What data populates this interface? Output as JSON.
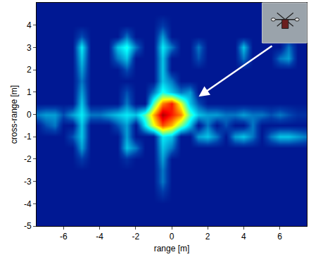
{
  "chart_data": {
    "type": "heatmap",
    "xlabel": "range [m]",
    "ylabel": "cross-range [m]",
    "xlim": [
      -7.5,
      7.5
    ],
    "ylim": [
      -5,
      5
    ],
    "xticks": [
      -6,
      -4,
      -2,
      0,
      2,
      4,
      6
    ],
    "yticks": [
      -5,
      -4,
      -3,
      -2,
      -1,
      0,
      1,
      2,
      3,
      4
    ],
    "zlim": [
      0,
      1
    ],
    "color": "Jet",
    "x": [
      -7.5,
      -7,
      -6.5,
      -6,
      -5.5,
      -5,
      -4.5,
      -4,
      -3.5,
      -3,
      -2.5,
      -2,
      -1.5,
      -1,
      -0.5,
      0,
      0.5,
      1,
      1.5,
      2,
      2.5,
      3,
      3.5,
      4,
      4.5,
      5,
      5.5,
      6,
      6.5,
      7,
      7.5
    ],
    "y": [
      -5,
      -4.5,
      -4,
      -3.5,
      -3,
      -2.5,
      -2,
      -1.5,
      -1,
      -0.5,
      0,
      0.5,
      1,
      1.5,
      2,
      2.5,
      3,
      3.5,
      4,
      4.5,
      5
    ],
    "z": [
      [
        0.05,
        0.05,
        0.05,
        0.05,
        0.05,
        0.05,
        0.05,
        0.05,
        0.05,
        0.05,
        0.05,
        0.05,
        0.05,
        0.05,
        0.05,
        0.05,
        0.05,
        0.05,
        0.05,
        0.05,
        0.05,
        0.05,
        0.05,
        0.05,
        0.05,
        0.05,
        0.05,
        0.05,
        0.05,
        0.05,
        0.05
      ],
      [
        0.05,
        0.05,
        0.05,
        0.05,
        0.05,
        0.05,
        0.05,
        0.05,
        0.05,
        0.05,
        0.05,
        0.05,
        0.05,
        0.05,
        0.05,
        0.05,
        0.05,
        0.05,
        0.05,
        0.05,
        0.05,
        0.05,
        0.05,
        0.05,
        0.05,
        0.05,
        0.05,
        0.05,
        0.05,
        0.05,
        0.05
      ],
      [
        0.05,
        0.05,
        0.05,
        0.05,
        0.05,
        0.05,
        0.05,
        0.05,
        0.05,
        0.05,
        0.05,
        0.05,
        0.05,
        0.05,
        0.05,
        0.05,
        0.05,
        0.05,
        0.05,
        0.05,
        0.05,
        0.05,
        0.05,
        0.05,
        0.05,
        0.05,
        0.05,
        0.05,
        0.05,
        0.05,
        0.05
      ],
      [
        0.05,
        0.05,
        0.05,
        0.05,
        0.05,
        0.05,
        0.05,
        0.05,
        0.05,
        0.05,
        0.05,
        0.05,
        0.05,
        0.05,
        0.12,
        0.05,
        0.05,
        0.05,
        0.05,
        0.05,
        0.05,
        0.05,
        0.05,
        0.05,
        0.05,
        0.05,
        0.05,
        0.05,
        0.05,
        0.05,
        0.05
      ],
      [
        0.05,
        0.05,
        0.05,
        0.05,
        0.05,
        0.05,
        0.05,
        0.05,
        0.05,
        0.05,
        0.05,
        0.05,
        0.05,
        0.05,
        0.2,
        0.05,
        0.05,
        0.05,
        0.05,
        0.05,
        0.05,
        0.05,
        0.05,
        0.05,
        0.05,
        0.05,
        0.05,
        0.05,
        0.05,
        0.05,
        0.05
      ],
      [
        0.05,
        0.05,
        0.05,
        0.05,
        0.05,
        0.05,
        0.05,
        0.05,
        0.05,
        0.05,
        0.05,
        0.05,
        0.05,
        0.05,
        0.2,
        0.05,
        0.05,
        0.05,
        0.05,
        0.05,
        0.05,
        0.05,
        0.05,
        0.05,
        0.05,
        0.05,
        0.05,
        0.05,
        0.05,
        0.05,
        0.05
      ],
      [
        0.05,
        0.05,
        0.05,
        0.05,
        0.05,
        0.12,
        0.05,
        0.05,
        0.05,
        0.05,
        0.1,
        0.05,
        0.05,
        0.05,
        0.25,
        0.05,
        0.05,
        0.05,
        0.05,
        0.05,
        0.05,
        0.05,
        0.05,
        0.05,
        0.05,
        0.05,
        0.05,
        0.05,
        0.05,
        0.05,
        0.05
      ],
      [
        0.05,
        0.05,
        0.05,
        0.05,
        0.05,
        0.25,
        0.05,
        0.05,
        0.05,
        0.05,
        0.3,
        0.2,
        0.05,
        0.05,
        0.3,
        0.2,
        0.05,
        0.05,
        0.05,
        0.05,
        0.05,
        0.05,
        0.05,
        0.05,
        0.05,
        0.05,
        0.05,
        0.05,
        0.05,
        0.05,
        0.05
      ],
      [
        0.05,
        0.05,
        0.05,
        0.05,
        0.15,
        0.3,
        0.05,
        0.05,
        0.05,
        0.05,
        0.25,
        0.05,
        0.05,
        0.05,
        0.35,
        0.3,
        0.05,
        0.05,
        0.25,
        0.3,
        0.2,
        0.05,
        0.25,
        0.3,
        0.2,
        0.05,
        0.2,
        0.3,
        0.3,
        0.25,
        0.2
      ],
      [
        0.05,
        0.15,
        0.2,
        0.05,
        0.05,
        0.3,
        0.05,
        0.05,
        0.05,
        0.15,
        0.25,
        0.05,
        0.35,
        0.6,
        0.8,
        0.7,
        0.5,
        0.3,
        0.05,
        0.2,
        0.05,
        0.15,
        0.05,
        0.05,
        0.2,
        0.05,
        0.05,
        0.05,
        0.05,
        0.05,
        0.05
      ],
      [
        0.2,
        0.25,
        0.25,
        0.15,
        0.25,
        0.35,
        0.2,
        0.2,
        0.25,
        0.3,
        0.35,
        0.3,
        0.45,
        0.7,
        0.95,
        0.85,
        0.75,
        0.45,
        0.3,
        0.25,
        0.25,
        0.2,
        0.2,
        0.25,
        0.2,
        0.2,
        0.15,
        0.2,
        0.15,
        0.1,
        0.1
      ],
      [
        0.05,
        0.05,
        0.05,
        0.05,
        0.05,
        0.3,
        0.05,
        0.05,
        0.05,
        0.05,
        0.2,
        0.05,
        0.05,
        0.45,
        0.75,
        0.85,
        0.6,
        0.3,
        0.15,
        0.05,
        0.05,
        0.05,
        0.05,
        0.05,
        0.05,
        0.05,
        0.05,
        0.05,
        0.05,
        0.05,
        0.05
      ],
      [
        0.05,
        0.05,
        0.05,
        0.05,
        0.05,
        0.25,
        0.05,
        0.05,
        0.05,
        0.05,
        0.15,
        0.05,
        0.05,
        0.2,
        0.4,
        0.3,
        0.2,
        0.25,
        0.05,
        0.05,
        0.05,
        0.05,
        0.05,
        0.05,
        0.05,
        0.05,
        0.05,
        0.05,
        0.05,
        0.05,
        0.05
      ],
      [
        0.05,
        0.05,
        0.05,
        0.05,
        0.05,
        0.2,
        0.05,
        0.05,
        0.05,
        0.05,
        0.05,
        0.05,
        0.05,
        0.05,
        0.3,
        0.2,
        0.05,
        0.05,
        0.05,
        0.05,
        0.05,
        0.05,
        0.05,
        0.05,
        0.05,
        0.05,
        0.05,
        0.05,
        0.05,
        0.05,
        0.05
      ],
      [
        0.05,
        0.05,
        0.05,
        0.05,
        0.05,
        0.25,
        0.05,
        0.05,
        0.05,
        0.05,
        0.15,
        0.05,
        0.05,
        0.05,
        0.3,
        0.05,
        0.05,
        0.05,
        0.05,
        0.05,
        0.05,
        0.05,
        0.05,
        0.05,
        0.05,
        0.05,
        0.05,
        0.05,
        0.05,
        0.05,
        0.05
      ],
      [
        0.05,
        0.05,
        0.05,
        0.05,
        0.05,
        0.3,
        0.05,
        0.05,
        0.05,
        0.2,
        0.3,
        0.05,
        0.05,
        0.05,
        0.3,
        0.05,
        0.05,
        0.05,
        0.15,
        0.05,
        0.05,
        0.05,
        0.05,
        0.2,
        0.05,
        0.05,
        0.05,
        0.2,
        0.25,
        0.05,
        0.05
      ],
      [
        0.05,
        0.05,
        0.05,
        0.05,
        0.05,
        0.35,
        0.05,
        0.05,
        0.05,
        0.3,
        0.4,
        0.2,
        0.05,
        0.05,
        0.35,
        0.2,
        0.05,
        0.05,
        0.2,
        0.05,
        0.05,
        0.05,
        0.05,
        0.3,
        0.05,
        0.05,
        0.05,
        0.05,
        0.2,
        0.05,
        0.05
      ],
      [
        0.05,
        0.05,
        0.05,
        0.05,
        0.05,
        0.15,
        0.05,
        0.05,
        0.05,
        0.05,
        0.2,
        0.05,
        0.05,
        0.05,
        0.25,
        0.05,
        0.05,
        0.05,
        0.05,
        0.05,
        0.05,
        0.05,
        0.05,
        0.05,
        0.05,
        0.05,
        0.05,
        0.05,
        0.05,
        0.05,
        0.05
      ],
      [
        0.05,
        0.05,
        0.05,
        0.05,
        0.05,
        0.05,
        0.05,
        0.05,
        0.05,
        0.05,
        0.05,
        0.05,
        0.05,
        0.05,
        0.12,
        0.05,
        0.05,
        0.05,
        0.05,
        0.05,
        0.05,
        0.05,
        0.05,
        0.05,
        0.05,
        0.05,
        0.05,
        0.05,
        0.05,
        0.05,
        0.05
      ],
      [
        0.05,
        0.05,
        0.05,
        0.05,
        0.05,
        0.05,
        0.05,
        0.05,
        0.05,
        0.05,
        0.05,
        0.05,
        0.05,
        0.05,
        0.05,
        0.05,
        0.05,
        0.05,
        0.05,
        0.05,
        0.05,
        0.05,
        0.05,
        0.05,
        0.05,
        0.05,
        0.05,
        0.05,
        0.05,
        0.05,
        0.05
      ],
      [
        0.05,
        0.05,
        0.05,
        0.05,
        0.05,
        0.05,
        0.05,
        0.05,
        0.05,
        0.05,
        0.05,
        0.05,
        0.05,
        0.05,
        0.05,
        0.05,
        0.05,
        0.05,
        0.05,
        0.05,
        0.05,
        0.05,
        0.05,
        0.05,
        0.05,
        0.05,
        0.05,
        0.05,
        0.05,
        0.05,
        0.05
      ]
    ]
  }
}
